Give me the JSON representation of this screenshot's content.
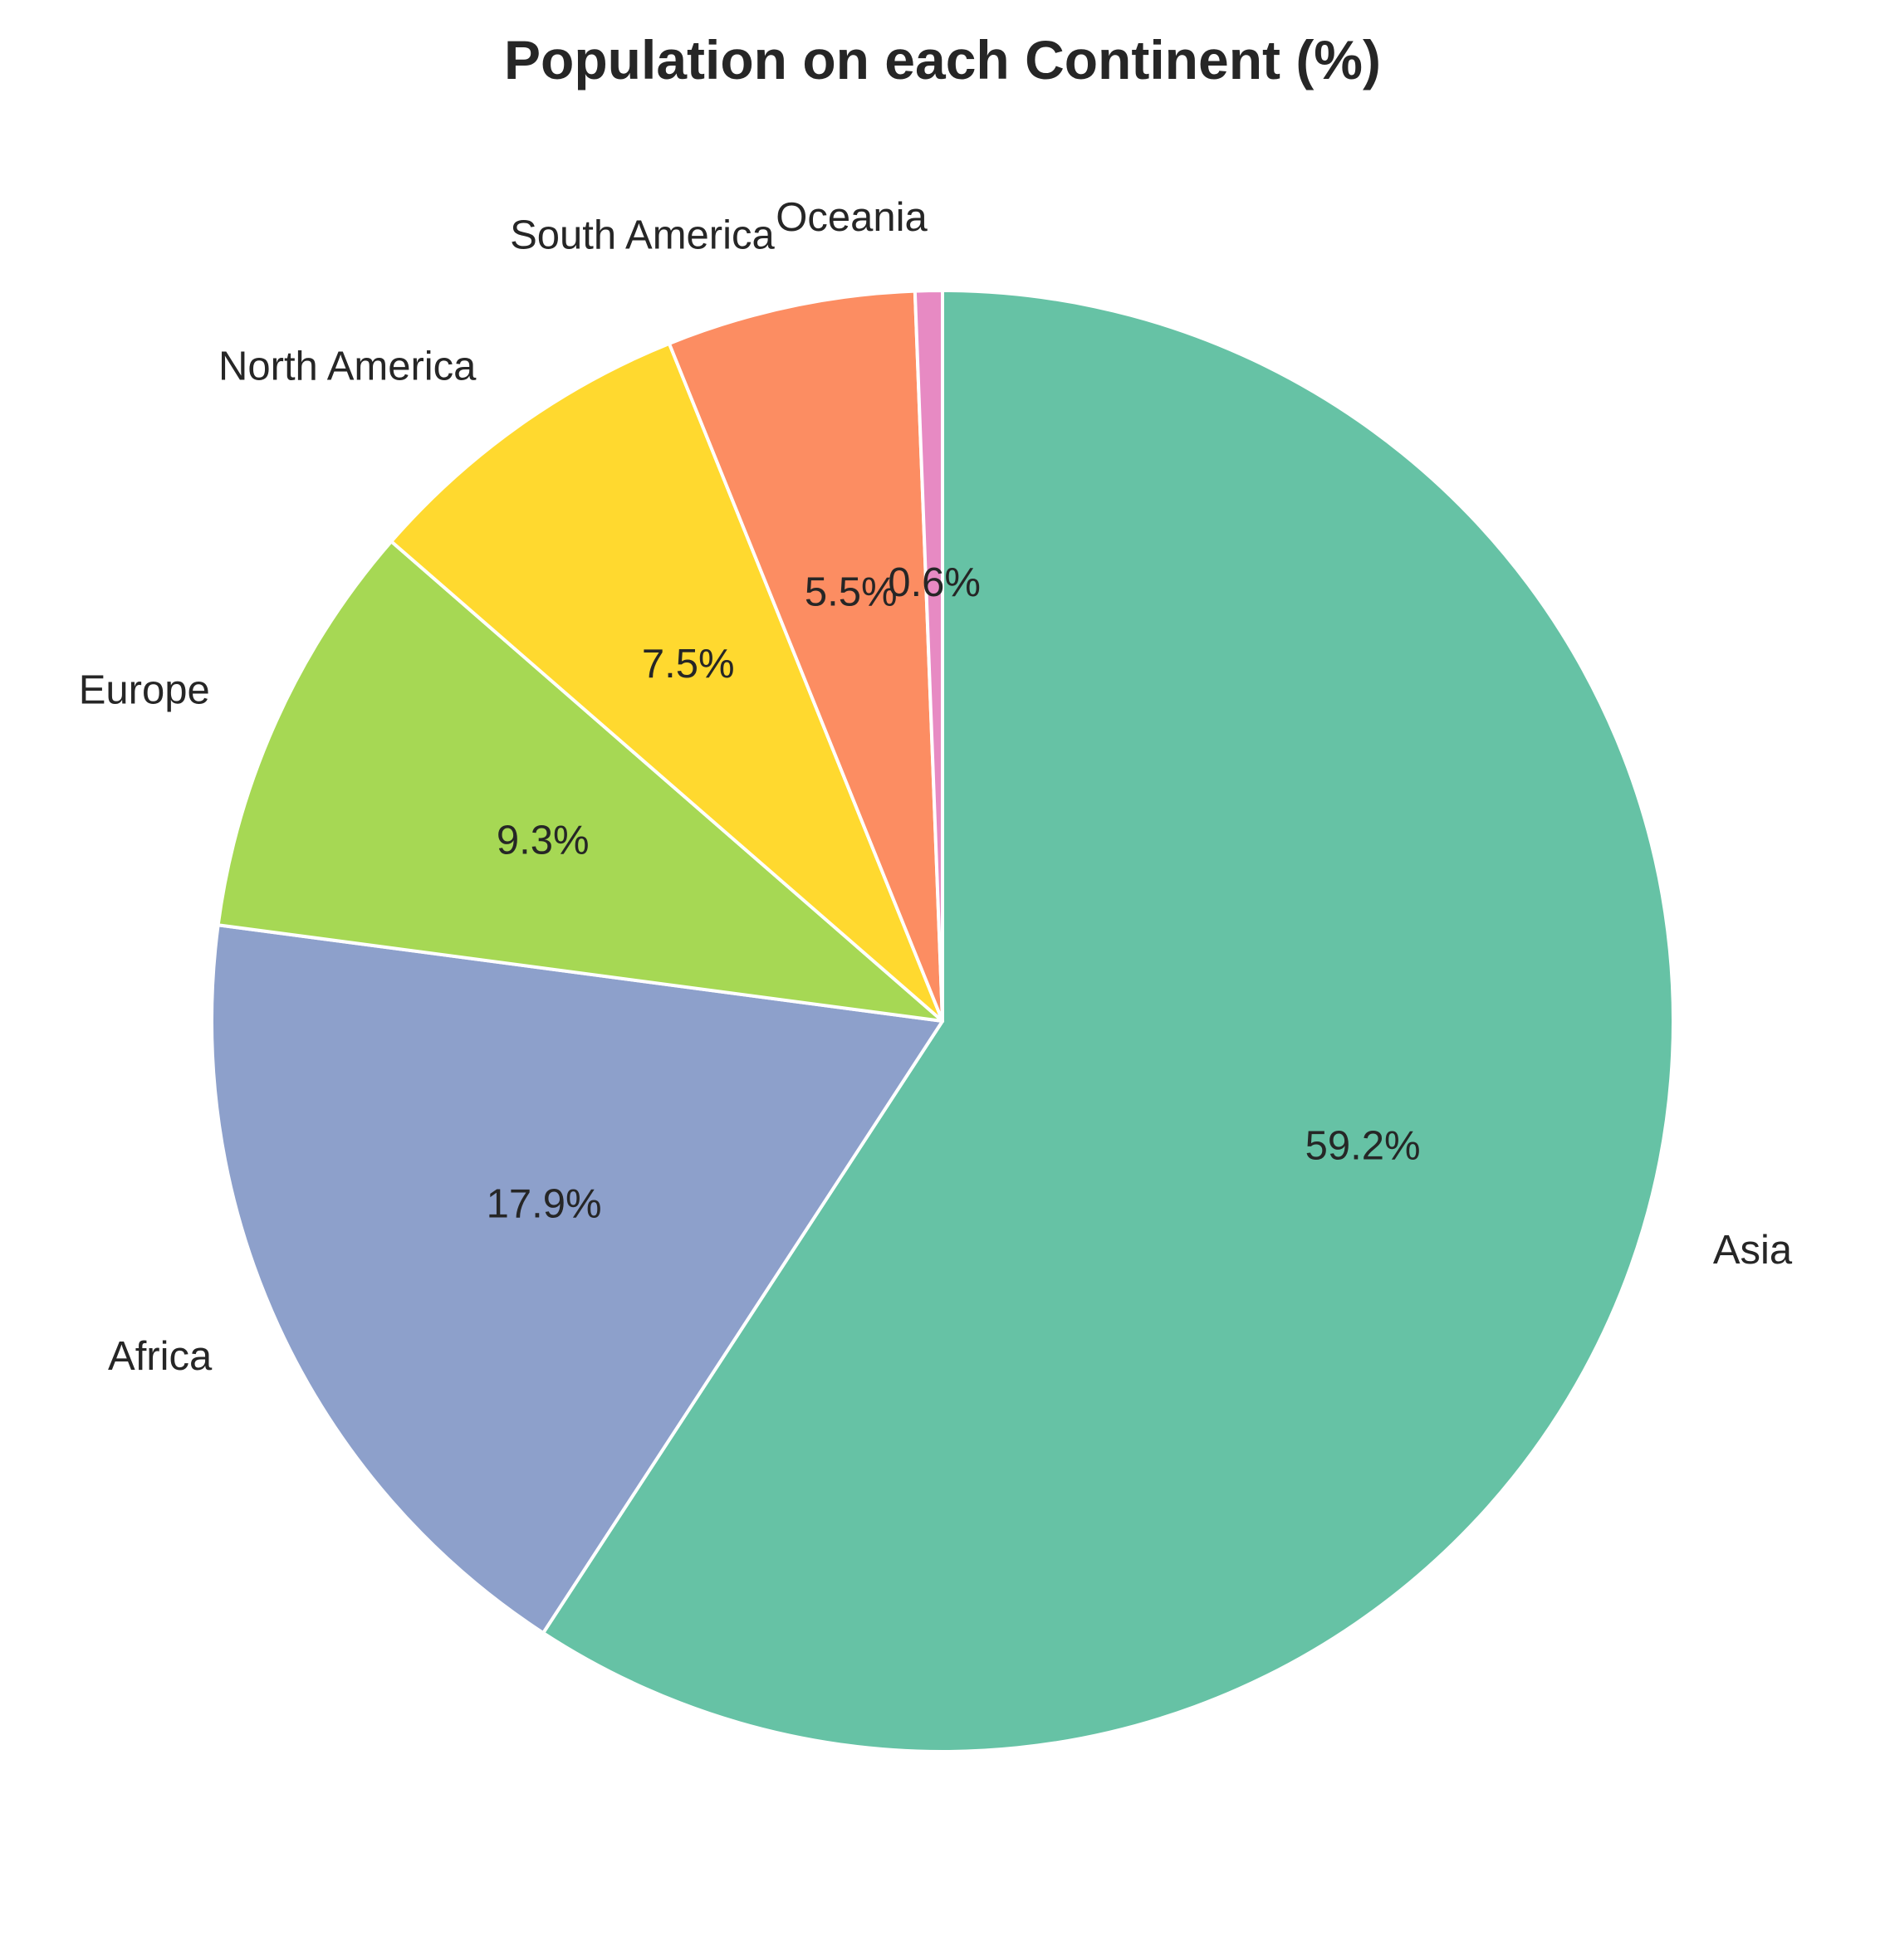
{
  "chart_data": {
    "type": "pie",
    "title": "Population on each Continent (%)",
    "start_angle_deg": 90,
    "direction": "clockwise",
    "categories": [
      "Asia",
      "Africa",
      "Europe",
      "North America",
      "South America",
      "Oceania"
    ],
    "values": [
      59.2,
      17.9,
      9.3,
      7.5,
      5.5,
      0.6
    ],
    "value_labels": [
      "59.2%",
      "17.9%",
      "9.3%",
      "7.5%",
      "5.5%",
      "0.6%"
    ],
    "colors": [
      "#66c2a5",
      "#8da0cb",
      "#a6d854",
      "#ffd92f",
      "#fc8d62",
      "#e78ac3"
    ],
    "legend": "none"
  }
}
